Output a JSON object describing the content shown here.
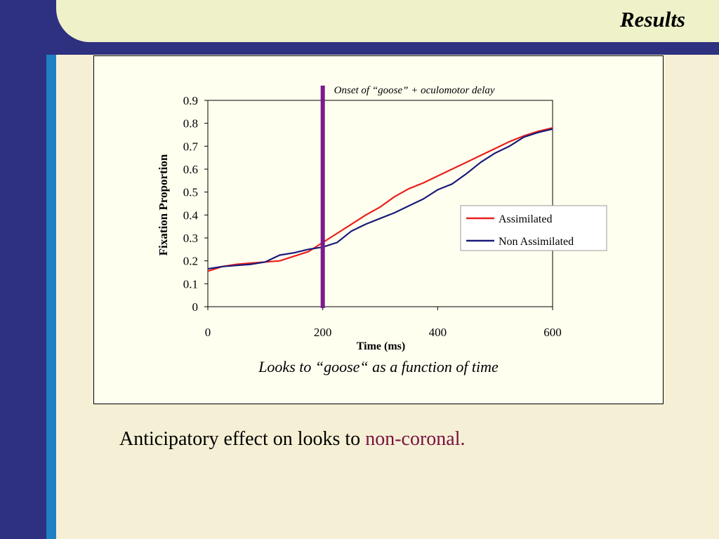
{
  "slide": {
    "title": "Results",
    "caption": "Looks to “goose“ as a function of time",
    "body_text": "Anticipatory effect on looks to ",
    "body_highlight": "non-coronal."
  },
  "colors": {
    "background": "#f5f0d5",
    "band_dark": "#2e3080",
    "band_light": "#1f7fc4",
    "highlight": "#7a1040",
    "onset_marker": "#7a1a8c"
  },
  "chart_data": {
    "type": "line",
    "title": "",
    "xlabel": "Time (ms)",
    "ylabel": "Fixation Proportion",
    "xlim": [
      0,
      600
    ],
    "ylim": [
      0,
      0.9
    ],
    "xticks": [
      0,
      200,
      400,
      600
    ],
    "yticks": [
      0,
      0.1,
      0.2,
      0.3,
      0.4,
      0.5,
      0.6,
      0.7,
      0.8,
      0.9
    ],
    "xtick_labels": [
      "0",
      "200",
      "400",
      "600"
    ],
    "ytick_labels": [
      "0",
      "0.1",
      "0.2",
      "0.3",
      "0.4",
      "0.5",
      "0.6",
      "0.7",
      "0.8",
      "0.9"
    ],
    "grid": false,
    "legend_position": "right",
    "annotation": {
      "x": 200,
      "text": "Onset of “goose” + oculomotor delay"
    },
    "series": [
      {
        "name": "Assimilated",
        "color": "#e8201a",
        "x": [
          0,
          25,
          50,
          75,
          100,
          125,
          150,
          175,
          200,
          225,
          250,
          275,
          300,
          325,
          350,
          375,
          400,
          425,
          450,
          475,
          500,
          525,
          550,
          575,
          600
        ],
        "y": [
          0.155,
          0.175,
          0.185,
          0.19,
          0.195,
          0.2,
          0.22,
          0.24,
          0.28,
          0.32,
          0.36,
          0.4,
          0.435,
          0.48,
          0.515,
          0.54,
          0.57,
          0.6,
          0.63,
          0.66,
          0.69,
          0.72,
          0.745,
          0.765,
          0.78
        ]
      },
      {
        "name": "Non Assimilated",
        "color": "#1a1a7a",
        "x": [
          0,
          25,
          50,
          75,
          100,
          125,
          150,
          175,
          200,
          225,
          250,
          275,
          300,
          325,
          350,
          375,
          400,
          425,
          450,
          475,
          500,
          525,
          550,
          575,
          600
        ],
        "y": [
          0.165,
          0.175,
          0.18,
          0.185,
          0.195,
          0.225,
          0.235,
          0.25,
          0.26,
          0.28,
          0.33,
          0.36,
          0.385,
          0.41,
          0.44,
          0.47,
          0.51,
          0.535,
          0.58,
          0.63,
          0.67,
          0.7,
          0.74,
          0.76,
          0.775
        ]
      }
    ]
  }
}
